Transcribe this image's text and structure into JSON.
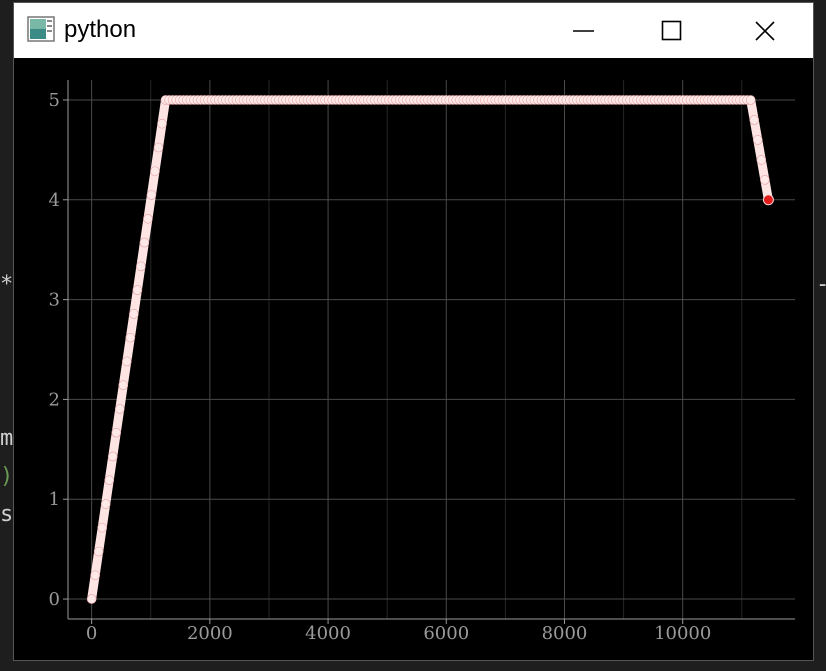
{
  "window": {
    "title": "python"
  },
  "icons": {
    "app": "python-app-icon",
    "minimize": "minimize-icon",
    "maximize": "maximize-icon",
    "close": "close-icon"
  },
  "background_fragments": [
    "*",
    "m",
    ")",
    "s",
    "-"
  ],
  "colors": {
    "plot_bg": "#000000",
    "line": "#ffe4e4",
    "last_point": "#e21b1b",
    "grid": "#4a4a4a",
    "axis_text": "#9a9a9a"
  },
  "chart_data": {
    "type": "line",
    "title": "",
    "xlabel": "",
    "ylabel": "",
    "xlim": [
      -400,
      11900
    ],
    "ylim": [
      -0.2,
      5.2
    ],
    "xticks": [
      0,
      2000,
      4000,
      6000,
      8000,
      10000
    ],
    "yticks": [
      0,
      1,
      2,
      3,
      4,
      5
    ],
    "xtick_labels": [
      "0",
      "2000",
      "4000",
      "6000",
      "8000",
      "10000"
    ],
    "ytick_labels": [
      "0",
      "1",
      "2",
      "3",
      "4",
      "5"
    ],
    "grid": true,
    "series": [
      {
        "x": [
          0,
          1250,
          11150,
          11450
        ],
        "y": [
          0,
          5,
          5,
          4
        ],
        "marker": "circle",
        "highlight_last_point": true
      }
    ]
  }
}
